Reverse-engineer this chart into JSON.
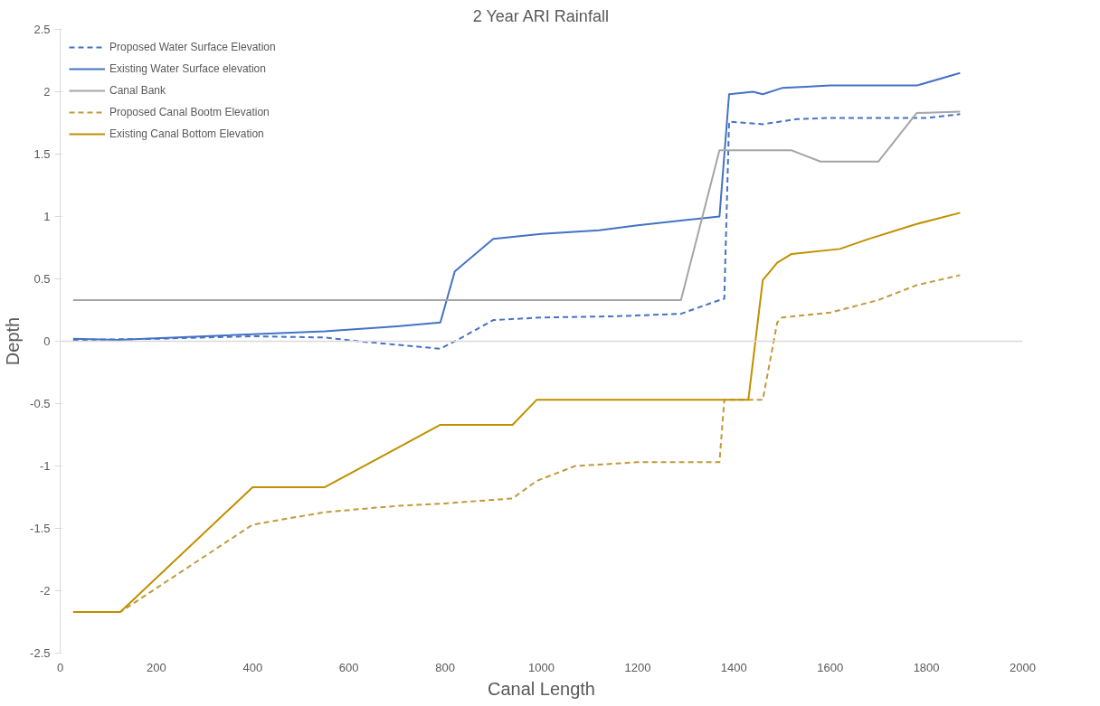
{
  "chart_data": {
    "type": "line",
    "title": "2 Year ARI Rainfall",
    "xlabel": "Canal Length",
    "ylabel": "Depth",
    "xlim": [
      0,
      2000
    ],
    "xticks": [
      0,
      200,
      400,
      600,
      800,
      1000,
      1200,
      1400,
      1600,
      1800,
      2000
    ],
    "ylim": [
      -2.5,
      2.5
    ],
    "yticks": [
      -2.5,
      -2,
      -1.5,
      -1,
      -0.5,
      0,
      0.5,
      1,
      1.5,
      2,
      2.5
    ],
    "grid": false,
    "legend": "top left",
    "marker": "none",
    "ref_lines": [
      {
        "axis": "y",
        "value": 0,
        "color": "#d9d9d9"
      }
    ],
    "series": [
      {
        "name": "Proposed Water Surface Elevation",
        "color": "#4472c4",
        "line_style": "dashed",
        "x": [
          27,
          200,
          400,
          550,
          620,
          790,
          830,
          900,
          1000,
          1150,
          1290,
          1370,
          1380,
          1390,
          1460,
          1530,
          1600,
          1700,
          1800,
          1870
        ],
        "values": [
          0.01,
          0.02,
          0.04,
          0.03,
          0.0,
          -0.06,
          0.02,
          0.17,
          0.19,
          0.2,
          0.22,
          0.33,
          0.34,
          1.76,
          1.74,
          1.78,
          1.79,
          1.79,
          1.79,
          1.82
        ]
      },
      {
        "name": "Existing Water Surface elevation",
        "color": "#4472c4",
        "line_style": "solid",
        "x": [
          27,
          120,
          300,
          550,
          700,
          790,
          820,
          900,
          1000,
          1120,
          1200,
          1370,
          1390,
          1440,
          1460,
          1500,
          1550,
          1600,
          1780,
          1870
        ],
        "values": [
          0.02,
          0.01,
          0.04,
          0.08,
          0.12,
          0.15,
          0.56,
          0.82,
          0.86,
          0.89,
          0.93,
          1.0,
          1.98,
          2.0,
          1.98,
          2.03,
          2.04,
          2.05,
          2.05,
          2.15
        ]
      },
      {
        "name": "Canal Bank",
        "color": "#a5a5a5",
        "line_style": "solid",
        "x": [
          27,
          1290,
          1370,
          1520,
          1580,
          1700,
          1780,
          1870
        ],
        "values": [
          0.33,
          0.33,
          1.53,
          1.53,
          1.44,
          1.44,
          1.83,
          1.84
        ]
      },
      {
        "name": "Proposed Canal Bootm Elevation",
        "color": "#c09a3a",
        "line_style": "dashed",
        "x": [
          27,
          125,
          400,
          550,
          700,
          800,
          940,
          990,
          1070,
          1200,
          1370,
          1380,
          1460,
          1490,
          1500,
          1600,
          1700,
          1780,
          1870
        ],
        "values": [
          -2.17,
          -2.17,
          -1.47,
          -1.37,
          -1.32,
          -1.3,
          -1.26,
          -1.12,
          -1.0,
          -0.97,
          -0.97,
          -0.47,
          -0.47,
          0.15,
          0.19,
          0.23,
          0.33,
          0.45,
          0.53
        ]
      },
      {
        "name": "Existing Canal Bottom Elevation",
        "color": "#bf9000",
        "line_style": "solid",
        "x": [
          27,
          125,
          400,
          550,
          790,
          940,
          990,
          1430,
          1460,
          1490,
          1520,
          1620,
          1680,
          1780,
          1870
        ],
        "values": [
          -2.17,
          -2.17,
          -1.17,
          -1.17,
          -0.67,
          -0.67,
          -0.47,
          -0.47,
          0.49,
          0.63,
          0.7,
          0.74,
          0.82,
          0.94,
          1.03
        ]
      }
    ]
  }
}
